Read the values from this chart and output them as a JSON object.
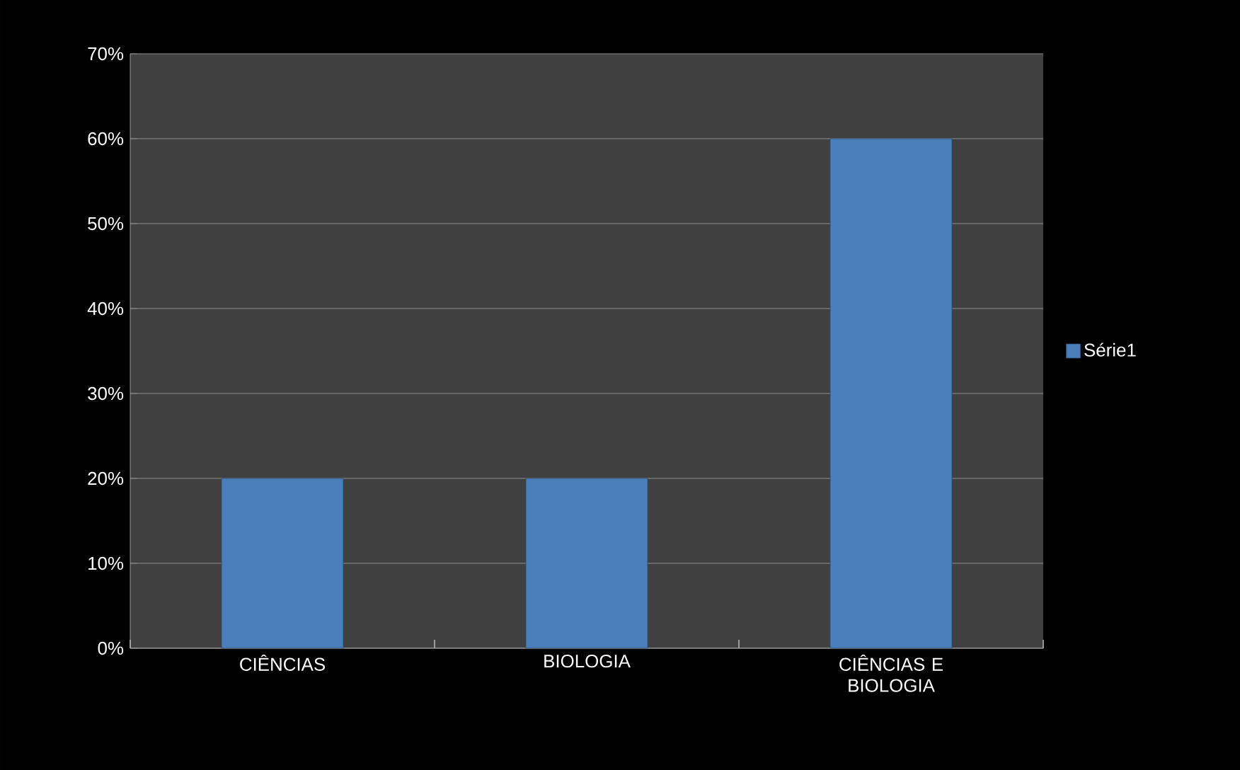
{
  "chart_data": {
    "type": "bar",
    "categories": [
      "CIÊNCIAS",
      "BIOLOGIA",
      "CIÊNCIAS E BIOLOGIA"
    ],
    "series": [
      {
        "name": "Série1",
        "color": "#4a7ebb",
        "values": [
          20,
          20,
          60
        ]
      }
    ],
    "ylim": [
      0,
      70
    ],
    "yticks": [
      {
        "value": 0,
        "label": "0%"
      },
      {
        "value": 10,
        "label": "10%"
      },
      {
        "value": 20,
        "label": "20%"
      },
      {
        "value": 30,
        "label": "30%"
      },
      {
        "value": 40,
        "label": "40%"
      },
      {
        "value": 50,
        "label": "50%"
      },
      {
        "value": 60,
        "label": "60%"
      },
      {
        "value": 70,
        "label": "70%"
      }
    ],
    "grid": "y",
    "legend": "right"
  }
}
